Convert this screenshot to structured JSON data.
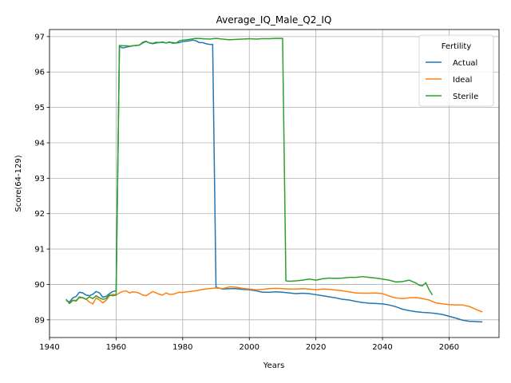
{
  "chart_data": {
    "type": "line",
    "title": "Average_IQ_Male_Q2_IQ",
    "xlabel": "Years",
    "ylabel": "Score(64-129)",
    "xlim": [
      1940,
      2075
    ],
    "ylim": [
      88.5,
      97.2
    ],
    "xticks": [
      1940,
      1960,
      1980,
      2000,
      2020,
      2040,
      2060
    ],
    "yticks": [
      89,
      90,
      91,
      92,
      93,
      94,
      95,
      96,
      97
    ],
    "grid": true,
    "legend": {
      "title": "Fertility",
      "placement": "upper right"
    },
    "series": [
      {
        "name": "Actual",
        "color": "#1f77b4",
        "points": [
          [
            1945,
            89.55
          ],
          [
            1946,
            89.5
          ],
          [
            1947,
            89.62
          ],
          [
            1948,
            89.66
          ],
          [
            1949,
            89.78
          ],
          [
            1950,
            89.76
          ],
          [
            1951,
            89.7
          ],
          [
            1952,
            89.68
          ],
          [
            1953,
            89.72
          ],
          [
            1954,
            89.8
          ],
          [
            1955,
            89.76
          ],
          [
            1956,
            89.64
          ],
          [
            1957,
            89.66
          ],
          [
            1958,
            89.74
          ],
          [
            1959,
            89.8
          ],
          [
            1960,
            89.82
          ],
          [
            1961,
            96.72
          ],
          [
            1962,
            96.68
          ],
          [
            1963,
            96.7
          ],
          [
            1964,
            96.72
          ],
          [
            1965,
            96.74
          ],
          [
            1966,
            96.75
          ],
          [
            1967,
            96.76
          ],
          [
            1968,
            96.82
          ],
          [
            1969,
            96.86
          ],
          [
            1970,
            96.82
          ],
          [
            1971,
            96.8
          ],
          [
            1972,
            96.82
          ],
          [
            1973,
            96.83
          ],
          [
            1974,
            96.84
          ],
          [
            1975,
            96.82
          ],
          [
            1976,
            96.84
          ],
          [
            1977,
            96.83
          ],
          [
            1978,
            96.82
          ],
          [
            1979,
            96.83
          ],
          [
            1980,
            96.86
          ],
          [
            1981,
            96.87
          ],
          [
            1982,
            96.88
          ],
          [
            1983,
            96.9
          ],
          [
            1984,
            96.88
          ],
          [
            1985,
            96.83
          ],
          [
            1986,
            96.83
          ],
          [
            1987,
            96.8
          ],
          [
            1988,
            96.78
          ],
          [
            1989,
            96.78
          ],
          [
            1990,
            89.92
          ],
          [
            1992,
            89.87
          ],
          [
            1994,
            89.88
          ],
          [
            1996,
            89.88
          ],
          [
            1998,
            89.86
          ],
          [
            2000,
            89.85
          ],
          [
            2002,
            89.82
          ],
          [
            2004,
            89.78
          ],
          [
            2006,
            89.78
          ],
          [
            2008,
            89.79
          ],
          [
            2010,
            89.78
          ],
          [
            2012,
            89.76
          ],
          [
            2014,
            89.74
          ],
          [
            2016,
            89.75
          ],
          [
            2018,
            89.74
          ],
          [
            2020,
            89.71
          ],
          [
            2022,
            89.68
          ],
          [
            2024,
            89.65
          ],
          [
            2026,
            89.62
          ],
          [
            2028,
            89.58
          ],
          [
            2030,
            89.56
          ],
          [
            2032,
            89.52
          ],
          [
            2034,
            89.49
          ],
          [
            2036,
            89.47
          ],
          [
            2038,
            89.46
          ],
          [
            2040,
            89.45
          ],
          [
            2042,
            89.42
          ],
          [
            2044,
            89.37
          ],
          [
            2046,
            89.3
          ],
          [
            2048,
            89.26
          ],
          [
            2050,
            89.23
          ],
          [
            2052,
            89.21
          ],
          [
            2054,
            89.2
          ],
          [
            2056,
            89.18
          ],
          [
            2058,
            89.15
          ],
          [
            2060,
            89.1
          ],
          [
            2062,
            89.05
          ],
          [
            2064,
            88.99
          ],
          [
            2066,
            88.96
          ],
          [
            2068,
            88.95
          ],
          [
            2070,
            88.94
          ]
        ]
      },
      {
        "name": "Ideal",
        "color": "#ff7f0e",
        "points": [
          [
            1945,
            89.57
          ],
          [
            1946,
            89.47
          ],
          [
            1947,
            89.55
          ],
          [
            1948,
            89.55
          ],
          [
            1949,
            89.62
          ],
          [
            1950,
            89.63
          ],
          [
            1951,
            89.58
          ],
          [
            1952,
            89.5
          ],
          [
            1953,
            89.45
          ],
          [
            1954,
            89.62
          ],
          [
            1955,
            89.56
          ],
          [
            1956,
            89.48
          ],
          [
            1957,
            89.55
          ],
          [
            1958,
            89.68
          ],
          [
            1959,
            89.72
          ],
          [
            1960,
            89.7
          ],
          [
            1961,
            89.76
          ],
          [
            1962,
            89.8
          ],
          [
            1963,
            89.82
          ],
          [
            1964,
            89.76
          ],
          [
            1965,
            89.79
          ],
          [
            1966,
            89.78
          ],
          [
            1967,
            89.75
          ],
          [
            1968,
            89.7
          ],
          [
            1969,
            89.68
          ],
          [
            1970,
            89.74
          ],
          [
            1971,
            89.8
          ],
          [
            1972,
            89.76
          ],
          [
            1973,
            89.72
          ],
          [
            1974,
            89.7
          ],
          [
            1975,
            89.76
          ],
          [
            1976,
            89.72
          ],
          [
            1977,
            89.72
          ],
          [
            1978,
            89.75
          ],
          [
            1979,
            89.78
          ],
          [
            1980,
            89.77
          ],
          [
            1982,
            89.8
          ],
          [
            1984,
            89.82
          ],
          [
            1986,
            89.86
          ],
          [
            1988,
            89.88
          ],
          [
            1990,
            89.9
          ],
          [
            1992,
            89.88
          ],
          [
            1994,
            89.93
          ],
          [
            1996,
            89.92
          ],
          [
            1998,
            89.89
          ],
          [
            2000,
            89.87
          ],
          [
            2002,
            89.85
          ],
          [
            2004,
            89.86
          ],
          [
            2006,
            89.88
          ],
          [
            2008,
            89.89
          ],
          [
            2010,
            89.88
          ],
          [
            2012,
            89.87
          ],
          [
            2014,
            89.87
          ],
          [
            2016,
            89.88
          ],
          [
            2018,
            89.87
          ],
          [
            2020,
            89.85
          ],
          [
            2022,
            89.87
          ],
          [
            2024,
            89.86
          ],
          [
            2026,
            89.84
          ],
          [
            2028,
            89.82
          ],
          [
            2030,
            89.79
          ],
          [
            2032,
            89.76
          ],
          [
            2034,
            89.75
          ],
          [
            2036,
            89.75
          ],
          [
            2038,
            89.76
          ],
          [
            2040,
            89.74
          ],
          [
            2042,
            89.67
          ],
          [
            2044,
            89.62
          ],
          [
            2046,
            89.6
          ],
          [
            2048,
            89.62
          ],
          [
            2050,
            89.63
          ],
          [
            2052,
            89.6
          ],
          [
            2054,
            89.56
          ],
          [
            2056,
            89.48
          ],
          [
            2058,
            89.45
          ],
          [
            2060,
            89.43
          ],
          [
            2062,
            89.42
          ],
          [
            2064,
            89.42
          ],
          [
            2066,
            89.38
          ],
          [
            2068,
            89.3
          ],
          [
            2070,
            89.22
          ]
        ]
      },
      {
        "name": "Sterile",
        "color": "#2ca02c",
        "points": [
          [
            1945,
            89.58
          ],
          [
            1946,
            89.46
          ],
          [
            1947,
            89.55
          ],
          [
            1948,
            89.53
          ],
          [
            1949,
            89.65
          ],
          [
            1950,
            89.62
          ],
          [
            1951,
            89.58
          ],
          [
            1952,
            89.65
          ],
          [
            1953,
            89.6
          ],
          [
            1954,
            89.68
          ],
          [
            1955,
            89.62
          ],
          [
            1956,
            89.58
          ],
          [
            1957,
            89.6
          ],
          [
            1958,
            89.7
          ],
          [
            1959,
            89.68
          ],
          [
            1960,
            89.7
          ],
          [
            1961,
            96.75
          ],
          [
            1962,
            96.74
          ],
          [
            1963,
            96.74
          ],
          [
            1964,
            96.73
          ],
          [
            1965,
            96.74
          ],
          [
            1966,
            96.75
          ],
          [
            1967,
            96.76
          ],
          [
            1968,
            96.84
          ],
          [
            1969,
            96.87
          ],
          [
            1970,
            96.82
          ],
          [
            1971,
            96.81
          ],
          [
            1972,
            96.84
          ],
          [
            1973,
            96.83
          ],
          [
            1974,
            96.85
          ],
          [
            1975,
            96.82
          ],
          [
            1976,
            96.85
          ],
          [
            1977,
            96.81
          ],
          [
            1978,
            96.82
          ],
          [
            1979,
            96.88
          ],
          [
            1980,
            96.9
          ],
          [
            1982,
            96.92
          ],
          [
            1984,
            96.95
          ],
          [
            1986,
            96.94
          ],
          [
            1988,
            96.93
          ],
          [
            1990,
            96.95
          ],
          [
            1992,
            96.93
          ],
          [
            1994,
            96.91
          ],
          [
            1996,
            96.92
          ],
          [
            1998,
            96.93
          ],
          [
            2000,
            96.94
          ],
          [
            2002,
            96.93
          ],
          [
            2004,
            96.94
          ],
          [
            2006,
            96.94
          ],
          [
            2008,
            96.95
          ],
          [
            2010,
            96.95
          ],
          [
            2011,
            90.1
          ],
          [
            2012,
            90.09
          ],
          [
            2014,
            90.1
          ],
          [
            2016,
            90.12
          ],
          [
            2018,
            90.15
          ],
          [
            2020,
            90.12
          ],
          [
            2022,
            90.16
          ],
          [
            2024,
            90.18
          ],
          [
            2026,
            90.17
          ],
          [
            2028,
            90.18
          ],
          [
            2030,
            90.2
          ],
          [
            2032,
            90.2
          ],
          [
            2034,
            90.22
          ],
          [
            2036,
            90.2
          ],
          [
            2038,
            90.18
          ],
          [
            2040,
            90.15
          ],
          [
            2042,
            90.12
          ],
          [
            2044,
            90.07
          ],
          [
            2046,
            90.08
          ],
          [
            2048,
            90.12
          ],
          [
            2050,
            90.04
          ],
          [
            2051,
            89.98
          ],
          [
            2052,
            89.96
          ],
          [
            2053,
            90.05
          ],
          [
            2054,
            89.85
          ],
          [
            2055,
            89.7
          ]
        ]
      }
    ]
  }
}
